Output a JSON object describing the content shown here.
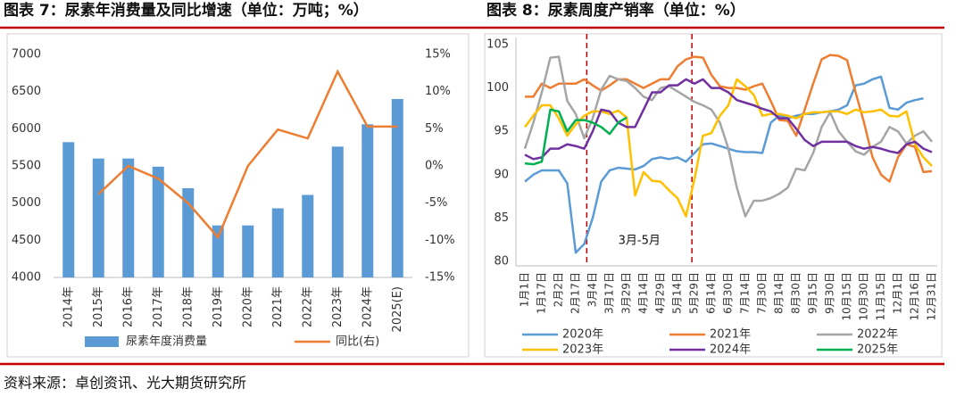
{
  "source": "资料来源：卓创资讯、光大期货研究所",
  "chart_data": [
    {
      "type": "bar",
      "title": "图表 7：尿素年消费量及同比增速（单位：万吨；%）",
      "categories": [
        "2014年",
        "2015年",
        "2016年",
        "2017年",
        "2018年",
        "2019年",
        "2020年",
        "2021年",
        "2022年",
        "2023年",
        "2024年",
        "2025(E)"
      ],
      "series": [
        {
          "name": "尿素年度消费量",
          "kind": "bar",
          "color": "#5b9bd5",
          "values": [
            5820,
            5600,
            5600,
            5490,
            5200,
            4700,
            4700,
            4930,
            5110,
            5760,
            6060,
            6400
          ]
        },
        {
          "name": "同比(右)",
          "kind": "line",
          "axis": "y2",
          "color": "#ed7d31",
          "values": [
            null,
            -3.8,
            0,
            -1.7,
            -5,
            -9.6,
            0,
            4.9,
            3.7,
            12.7,
            5.3,
            5.3
          ]
        }
      ],
      "ylim": [
        4000,
        7000
      ],
      "yticks": [
        4000,
        4500,
        5000,
        5500,
        6000,
        6500,
        7000
      ],
      "y2lim": [
        -15,
        15
      ],
      "y2ticks": [
        {
          "value": -15,
          "label": "-15%"
        },
        {
          "value": -10,
          "label": "-10%"
        },
        {
          "value": -5,
          "label": "-5%"
        },
        {
          "value": 0,
          "label": "0%"
        },
        {
          "value": 5,
          "label": "5%"
        },
        {
          "value": 10,
          "label": "10%"
        },
        {
          "value": 15,
          "label": "15%"
        }
      ],
      "grid": false,
      "legend": "bottom"
    },
    {
      "type": "line",
      "title": "图表 8：尿素周度产销率（单位：%）",
      "categories": [
        "1月1日",
        null,
        "1月17日",
        null,
        "2月2日",
        null,
        "2月17日",
        null,
        "3月4日",
        null,
        "3月17日",
        null,
        "3月29日",
        null,
        "4月14日",
        null,
        "4月29日",
        null,
        "5月14日",
        null,
        "5月29日",
        null,
        "6月14日",
        null,
        "6月30日",
        null,
        "7月14日",
        null,
        "7月30日",
        null,
        "8月14日",
        null,
        "8月30日",
        null,
        "9月15日",
        null,
        "9月30日",
        null,
        "10月15日",
        null,
        "10月30日",
        null,
        "11月15日",
        null,
        "12月1日",
        null,
        "12月16日",
        null,
        "12月31日"
      ],
      "series": [
        {
          "name": "2020年",
          "color": "#5b9bd5",
          "values": [
            89.2,
            90,
            90.5,
            90.5,
            90.5,
            89,
            81,
            82,
            85,
            89.2,
            90.5,
            90.8,
            90.7,
            90.6,
            91,
            91.8,
            92,
            91.8,
            92,
            91.5,
            92.5,
            93.5,
            93.6,
            93.3,
            93,
            92.7,
            92.6,
            92.6,
            92.5,
            96,
            96.8,
            96.5,
            96.8,
            97,
            97,
            97.2,
            97.3,
            97.5,
            98,
            100.3,
            100.5,
            101,
            101.3,
            97.7,
            97.5,
            98.3,
            98.6,
            98.8,
            null
          ]
        },
        {
          "name": "2021年",
          "color": "#ed7d31",
          "values": [
            99,
            99,
            100.5,
            100,
            100.5,
            100.5,
            100.5,
            101,
            100.3,
            99.7,
            100.3,
            101,
            101,
            100.5,
            100,
            100.5,
            101,
            101,
            102.5,
            103.3,
            103.6,
            103.5,
            101.5,
            100.2,
            100,
            100,
            99.8,
            100.2,
            100.5,
            98.5,
            96.3,
            96.2,
            94.5,
            97.5,
            100.5,
            103.3,
            103.8,
            103.7,
            103.2,
            99.5,
            96,
            92,
            90,
            89.2,
            92,
            93.5,
            93.2,
            90.3,
            90.4
          ]
        },
        {
          "name": "2022年",
          "color": "#a5a5a5",
          "values": [
            93,
            96,
            99.5,
            103.5,
            103.6,
            98.5,
            97,
            94.2,
            96.5,
            99.8,
            101.4,
            101,
            100.8,
            100,
            99,
            98.6,
            100,
            100.2,
            99.6,
            99,
            98.4,
            98,
            97.5,
            96,
            93,
            88.5,
            85.2,
            87,
            87,
            87.3,
            87.8,
            88.5,
            90.7,
            90.5,
            92.5,
            95.5,
            97.2,
            95,
            93.8,
            92.7,
            92.3,
            93.2,
            93.8,
            95.5,
            95,
            93.6,
            94.5,
            95,
            93.8
          ]
        },
        {
          "name": "2023年",
          "color": "#ffc000",
          "values": [
            95.5,
            96.8,
            98,
            98,
            96.5,
            94.5,
            95.8,
            96.8,
            97.3,
            97.3,
            97,
            97.4,
            96.6,
            87.6,
            90.3,
            89.3,
            89.2,
            88.2,
            87.3,
            85.2,
            89.5,
            94.5,
            94.8,
            96.8,
            98,
            101,
            100.2,
            99.2,
            96.8,
            97,
            97,
            96.8,
            96.5,
            97,
            97.2,
            97.2,
            97.3,
            97.3,
            97,
            97.5,
            97.2,
            97.3,
            97.5,
            96.8,
            96.7,
            97.3,
            93.5,
            92,
            91
          ]
        },
        {
          "name": "2024年",
          "color": "#7030a0",
          "values": [
            92.3,
            91.8,
            92,
            93,
            93,
            93.5,
            93.3,
            93,
            95,
            97.5,
            97.3,
            96,
            95.5,
            95.5,
            97.5,
            99.5,
            99.5,
            100.3,
            100.3,
            101,
            100.5,
            101,
            100,
            100,
            99.5,
            98.6,
            98.3,
            98,
            97.6,
            97.3,
            96.5,
            96.5,
            95.3,
            94,
            93.3,
            93.8,
            93.8,
            93.8,
            93.8,
            93.3,
            93,
            93.2,
            93,
            92.7,
            92.5,
            93.5,
            93.8,
            93,
            92.6
          ]
        },
        {
          "name": "2025年",
          "color": "#00b050",
          "values": [
            91.3,
            91.2,
            91.5,
            97.5,
            97.3,
            95,
            96.3,
            96.3,
            96,
            95.5,
            94.7,
            96,
            96.6,
            null,
            null,
            null,
            null,
            null,
            null,
            null,
            null,
            null,
            null,
            null,
            null,
            null,
            null,
            null,
            null,
            null,
            null,
            null,
            null,
            null,
            null,
            null,
            null,
            null,
            null,
            null,
            null,
            null,
            null,
            null,
            null,
            null,
            null,
            null,
            null
          ]
        }
      ],
      "ylim": [
        80,
        105
      ],
      "yticks": [
        80,
        85,
        90,
        95,
        100,
        105
      ],
      "annotation": {
        "text": "3月-5月",
        "span": [
          7.3,
          19.7
        ],
        "color": "#c00000"
      },
      "grid": false,
      "legend": "bottom"
    }
  ]
}
